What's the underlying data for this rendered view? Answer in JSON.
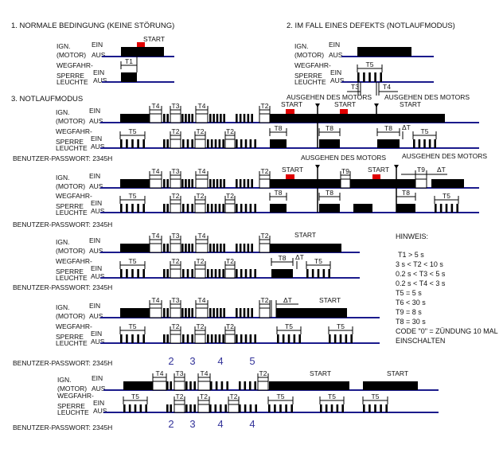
{
  "sections": {
    "normal": "1. NORMALE BEDINGUNG (KEINE STÖRUNG)",
    "defect": "2. IM FALL EINES DEFEKTS (NOTLAUFMODUS)",
    "emergency": "3. NOTLAUFMODUS"
  },
  "labels": {
    "ign": "IGN.",
    "motor": "(MOTOR)",
    "ein": "EIN",
    "aus": "AUS",
    "wegfahr": "WEGFAHR-",
    "sperre": "SPERRE",
    "leuchte": "LEUCHTE",
    "start": "START",
    "engine_off": "AUSGEHEN DES MOTORS",
    "password": "BENUTZER-PASSWORT: 2345H"
  },
  "timing": {
    "T1": "T1",
    "T2": "T2",
    "T3": "T3",
    "T4": "T4",
    "T5": "T5",
    "T8": "T8",
    "T9": "T9",
    "dT": "ΔT"
  },
  "notes": {
    "title": "HINWEIS:",
    "lines": [
      "T1 > 5 s",
      "3 s < T2 < 10 s",
      "0.2 s < T3 < 5  s",
      "0.2 s < T4 < 3 s",
      "T5 = 5 s",
      "T6 < 30 s",
      "T9 = 8 s",
      "T8 = 30 s",
      "CODE \"0\" = ZÜNDUNG 10 MAL",
      "EINSCHALTEN"
    ]
  },
  "digits_top": [
    "2",
    "3",
    "4",
    "5"
  ],
  "digits_bottom": [
    "2",
    "3",
    "4",
    "4"
  ],
  "colors": {
    "baseline": "#1b1b8c",
    "start_marker": "#e00000",
    "signal": "#000000",
    "digits": "#34349a"
  }
}
